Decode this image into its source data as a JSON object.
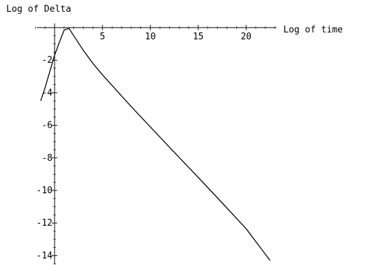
{
  "chart_data": {
    "type": "line",
    "ylabel": "Log of Delta",
    "xlabel": "Log of time",
    "x_ticks": [
      5,
      10,
      15,
      20
    ],
    "y_ticks": [
      -2,
      -4,
      -6,
      -8,
      -10,
      -12,
      -14
    ],
    "xlim": [
      -2.0,
      23.5
    ],
    "ylim": [
      -14.8,
      0.0
    ],
    "grid": false,
    "series": [
      {
        "x": [
          -1.45,
          -1.0,
          -0.5,
          0.0,
          0.5,
          1.0,
          1.5,
          2.0,
          3.0,
          4.0,
          5.0,
          8.0,
          10.0,
          12.0,
          15.0,
          17.0,
          20.0,
          22.5
        ],
        "y": [
          -4.5,
          -3.7,
          -2.7,
          -1.7,
          -0.9,
          -0.15,
          -0.05,
          -0.5,
          -1.4,
          -2.2,
          -2.9,
          -4.85,
          -6.1,
          -7.35,
          -9.2,
          -10.45,
          -12.35,
          -14.3
        ]
      }
    ],
    "color": "#000000"
  }
}
